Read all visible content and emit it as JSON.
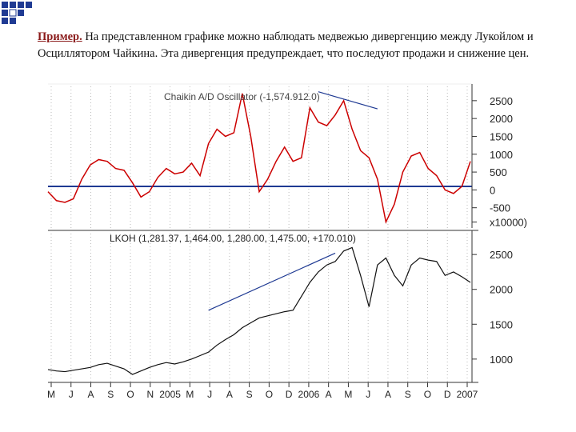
{
  "slide": {
    "caption_lead": "Пример.",
    "caption_text": " На представленном графике можно наблюдать медвежью дивергенцию между Лукойлом и Осциллятором Чайкина. Эта дивергенция предупреждает, что последуют продажи и снижение цен.",
    "accent_color": "#1f3a93"
  },
  "chart_data": [
    {
      "type": "line",
      "title": "Chaikin A/D Oscillator (-1,574.912.0)",
      "y_tick_labels": [
        "2500",
        "2000",
        "1500",
        "1000",
        "500",
        "0",
        "-500",
        "x10000)"
      ],
      "ylim": [
        -1000,
        2900
      ],
      "zero_line": true,
      "grid": "dotted vertical",
      "series": [
        {
          "color": "#cc0000",
          "x": [
            0,
            2,
            4,
            6,
            8,
            10,
            12,
            14,
            16,
            18,
            20,
            22,
            24,
            26,
            28,
            30,
            32,
            34,
            36,
            38,
            40,
            42,
            44,
            46,
            48,
            50,
            52,
            54,
            56,
            58,
            60,
            62,
            64,
            66,
            68,
            70,
            72,
            74,
            76,
            78,
            80,
            82,
            84,
            86,
            88,
            90,
            92,
            94,
            96,
            98,
            100
          ],
          "values": [
            -50,
            -300,
            -350,
            -250,
            300,
            700,
            850,
            800,
            600,
            550,
            200,
            -200,
            -50,
            350,
            600,
            450,
            500,
            750,
            400,
            1300,
            1700,
            1500,
            1600,
            2700,
            1500,
            -50,
            300,
            800,
            1200,
            800,
            900,
            2300,
            1900,
            1800,
            2100,
            2500,
            1700,
            1100,
            900,
            300,
            -900,
            -400,
            500,
            950,
            1050,
            600,
            400,
            0,
            -100,
            100,
            800
          ]
        }
      ],
      "divergence_line": {
        "x": [
          64,
          78
        ],
        "y": [
          2750,
          2270
        ]
      }
    },
    {
      "type": "line",
      "title": "LKOH (1,281.37, 1,464.00, 1,280.00, 1,475.00, +170.010)",
      "y_tick_labels": [
        "2500",
        "2000",
        "1500",
        "1000"
      ],
      "ylim": [
        700,
        2800
      ],
      "grid": "dotted vertical",
      "x_tick_labels": [
        "M",
        "J",
        "A",
        "S",
        "O",
        "N",
        "2005",
        "M",
        "J",
        "A",
        "S",
        "O",
        "D",
        "2006",
        "A",
        "M",
        "J",
        "A",
        "S",
        "O",
        "D",
        "2007"
      ],
      "series": [
        {
          "color": "#111111",
          "x": [
            0,
            2,
            4,
            6,
            8,
            10,
            12,
            14,
            16,
            18,
            20,
            22,
            24,
            26,
            28,
            30,
            32,
            34,
            36,
            38,
            40,
            42,
            44,
            46,
            48,
            50,
            52,
            54,
            56,
            58,
            60,
            62,
            64,
            66,
            68,
            70,
            72,
            74,
            76,
            78,
            80,
            82,
            84,
            86,
            88,
            90,
            92,
            94,
            96,
            98,
            100
          ],
          "values": [
            850,
            830,
            820,
            840,
            860,
            880,
            920,
            940,
            900,
            860,
            780,
            830,
            880,
            920,
            950,
            930,
            960,
            1000,
            1050,
            1100,
            1200,
            1280,
            1350,
            1450,
            1520,
            1590,
            1620,
            1650,
            1680,
            1700,
            1900,
            2100,
            2250,
            2350,
            2400,
            2550,
            2600,
            2200,
            1750,
            2350,
            2450,
            2200,
            2050,
            2350,
            2450,
            2420,
            2400,
            2200,
            2250,
            2180,
            2100
          ]
        }
      ],
      "trend_line": {
        "x": [
          38,
          68
        ],
        "y": [
          1700,
          2520
        ]
      }
    }
  ]
}
